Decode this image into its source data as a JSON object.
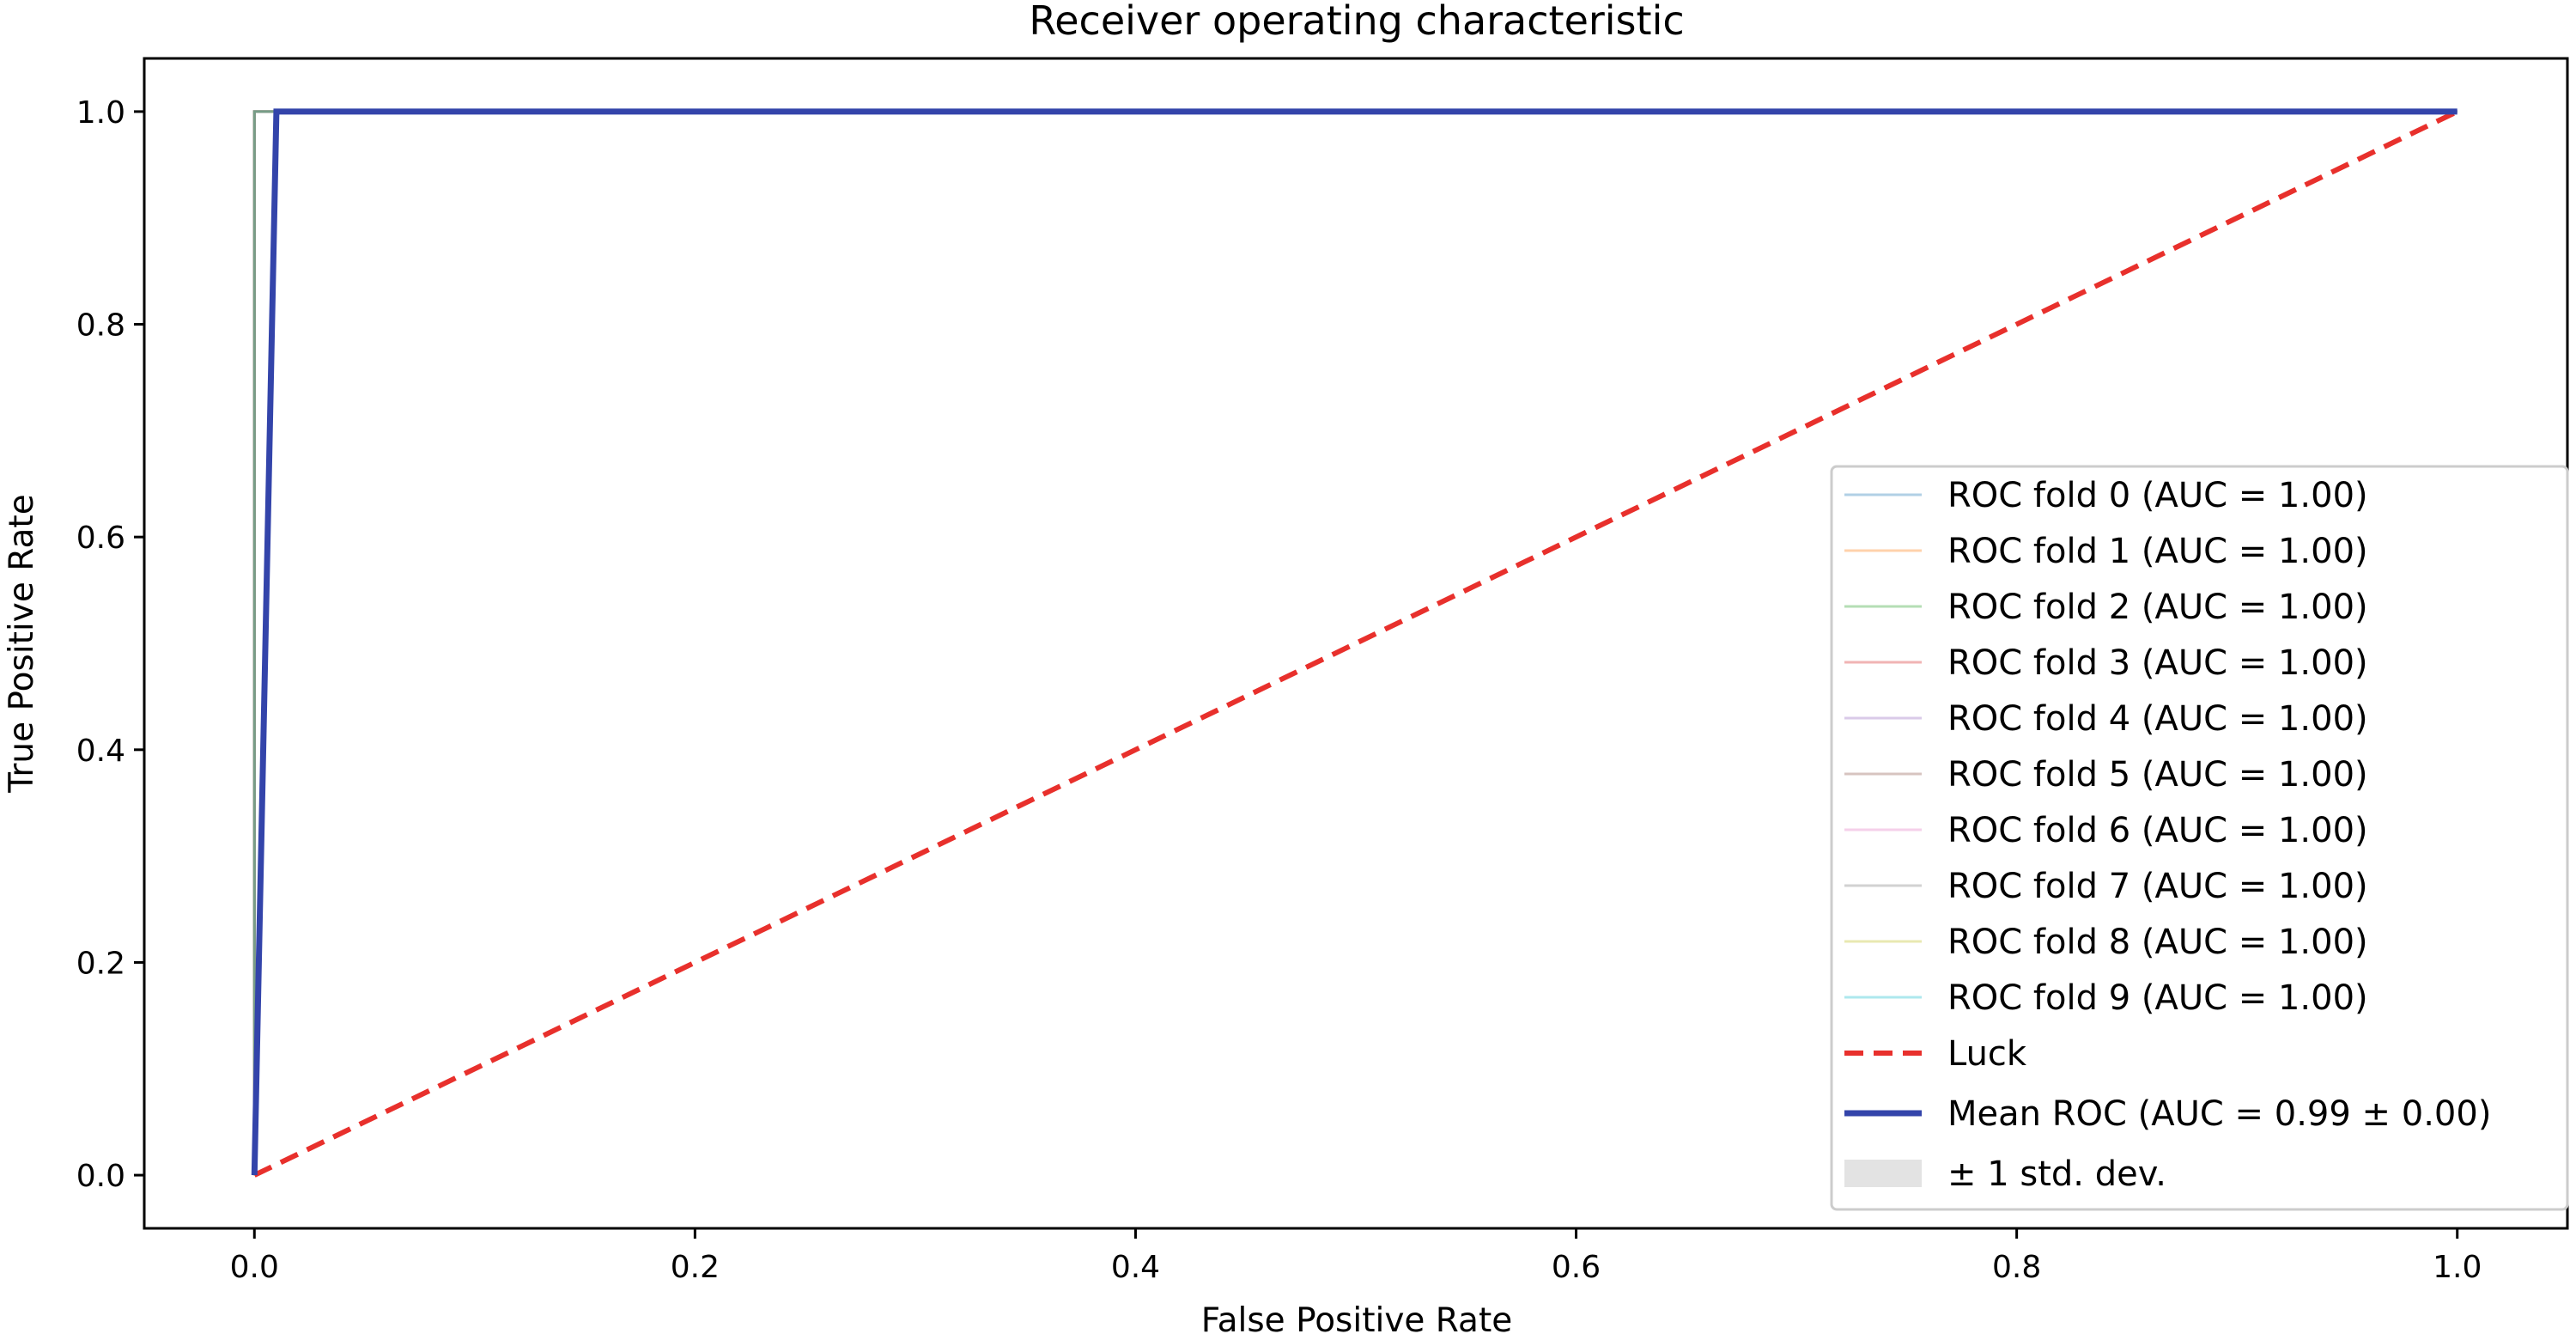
{
  "chart_data": {
    "type": "line",
    "title": "Receiver operating characteristic",
    "xlabel": "False Positive Rate",
    "ylabel": "True Positive Rate",
    "xlim": [
      -0.05,
      1.05
    ],
    "ylim": [
      -0.05,
      1.05
    ],
    "xticks": [
      0.0,
      0.2,
      0.4,
      0.6,
      0.8,
      1.0
    ],
    "yticks": [
      0.0,
      0.2,
      0.4,
      0.6,
      0.8,
      1.0
    ],
    "xtick_labels": [
      "0.0",
      "0.2",
      "0.4",
      "0.6",
      "0.8",
      "1.0"
    ],
    "ytick_labels": [
      "0.0",
      "0.2",
      "0.4",
      "0.6",
      "0.8",
      "1.0"
    ],
    "grid": false,
    "legend_position": "lower-right",
    "series": [
      {
        "name": "ROC fold 0 (AUC = 1.00)",
        "color": "#1f77b4",
        "style": "thin",
        "x": [
          0.0,
          0.0,
          1.0
        ],
        "y": [
          0.0,
          1.0,
          1.0
        ]
      },
      {
        "name": "ROC fold 1 (AUC = 1.00)",
        "color": "#ff7f0e",
        "style": "thin",
        "x": [
          0.0,
          0.0,
          1.0
        ],
        "y": [
          0.0,
          1.0,
          1.0
        ]
      },
      {
        "name": "ROC fold 2 (AUC = 1.00)",
        "color": "#2ca02c",
        "style": "thin",
        "x": [
          0.0,
          0.0,
          1.0
        ],
        "y": [
          0.0,
          1.0,
          1.0
        ]
      },
      {
        "name": "ROC fold 3 (AUC = 1.00)",
        "color": "#d62728",
        "style": "thin",
        "x": [
          0.0,
          0.0,
          1.0
        ],
        "y": [
          0.0,
          1.0,
          1.0
        ]
      },
      {
        "name": "ROC fold 4 (AUC = 1.00)",
        "color": "#9467bd",
        "style": "thin",
        "x": [
          0.0,
          0.0,
          1.0
        ],
        "y": [
          0.0,
          1.0,
          1.0
        ]
      },
      {
        "name": "ROC fold 5 (AUC = 1.00)",
        "color": "#8c564b",
        "style": "thin",
        "x": [
          0.0,
          0.0,
          1.0
        ],
        "y": [
          0.0,
          1.0,
          1.0
        ]
      },
      {
        "name": "ROC fold 6 (AUC = 1.00)",
        "color": "#e377c2",
        "style": "thin",
        "x": [
          0.0,
          0.0,
          1.0
        ],
        "y": [
          0.0,
          1.0,
          1.0
        ]
      },
      {
        "name": "ROC fold 7 (AUC = 1.00)",
        "color": "#7f7f7f",
        "style": "thin",
        "x": [
          0.0,
          0.0,
          1.0
        ],
        "y": [
          0.0,
          1.0,
          1.0
        ]
      },
      {
        "name": "ROC fold 8 (AUC = 1.00)",
        "color": "#bcbd22",
        "style": "thin",
        "x": [
          0.0,
          0.0,
          1.0
        ],
        "y": [
          0.0,
          1.0,
          1.0
        ]
      },
      {
        "name": "ROC fold 9 (AUC = 1.00)",
        "color": "#17becf",
        "style": "thin",
        "x": [
          0.0,
          0.0,
          1.0
        ],
        "y": [
          0.0,
          1.0,
          1.0
        ]
      },
      {
        "name": "Luck",
        "color": "#e8302c",
        "style": "dashed",
        "x": [
          0.0,
          1.0
        ],
        "y": [
          0.0,
          1.0
        ]
      },
      {
        "name": "Mean ROC (AUC = 0.99 ± 0.00)",
        "color": "#3344aa",
        "style": "bold",
        "x": [
          0.0,
          0.01,
          1.0
        ],
        "y": [
          0.0,
          1.0,
          1.0
        ]
      },
      {
        "name": "± 1 std. dev.",
        "color": "#c0c0c0",
        "style": "band",
        "x": [],
        "y": []
      }
    ]
  }
}
